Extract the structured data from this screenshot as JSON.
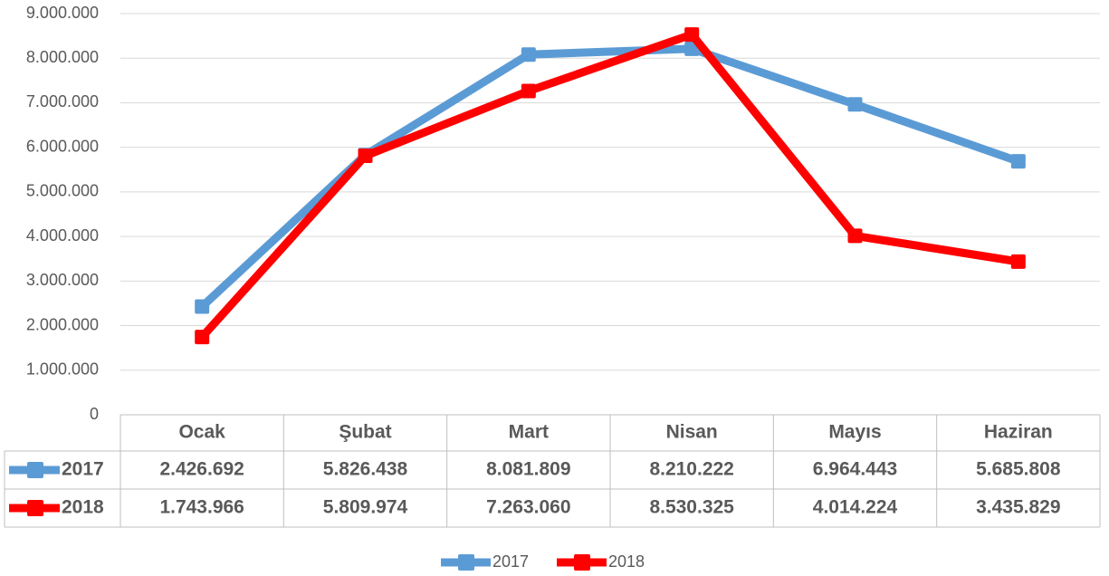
{
  "chart_data": {
    "type": "line",
    "categories": [
      "Ocak",
      "Şubat",
      "Mart",
      "Nisan",
      "Mayıs",
      "Haziran"
    ],
    "series": [
      {
        "name": "2017",
        "color": "#5b9bd5",
        "values": [
          2426692,
          5826438,
          8081809,
          8210222,
          6964443,
          5685808
        ],
        "value_labels": [
          "2.426.692",
          "5.826.438",
          "8.081.809",
          "8.210.222",
          "6.964.443",
          "5.685.808"
        ]
      },
      {
        "name": "2018",
        "color": "#ff0000",
        "values": [
          1743966,
          5809974,
          7263060,
          8530325,
          4014224,
          3435829
        ],
        "value_labels": [
          "1.743.966",
          "5.809.974",
          "7.263.060",
          "8.530.325",
          "4.014.224",
          "3.435.829"
        ]
      }
    ],
    "ylim": [
      0,
      9000000
    ],
    "yticks": [
      0,
      {
        "value": 1000000,
        "label": "1.000.000"
      },
      {
        "value": 2000000,
        "label": "2.000.000"
      },
      {
        "value": 3000000,
        "label": "3.000.000"
      },
      {
        "value": 4000000,
        "label": "4.000.000"
      },
      {
        "value": 5000000,
        "label": "5.000.000"
      },
      {
        "value": 6000000,
        "label": "6.000.000"
      },
      {
        "value": 7000000,
        "label": "7.000.000"
      },
      {
        "value": 8000000,
        "label": "8.000.000"
      },
      {
        "value": 9000000,
        "label": "9.000.000"
      }
    ],
    "grid": true,
    "data_table": true,
    "legend": "bottom"
  }
}
